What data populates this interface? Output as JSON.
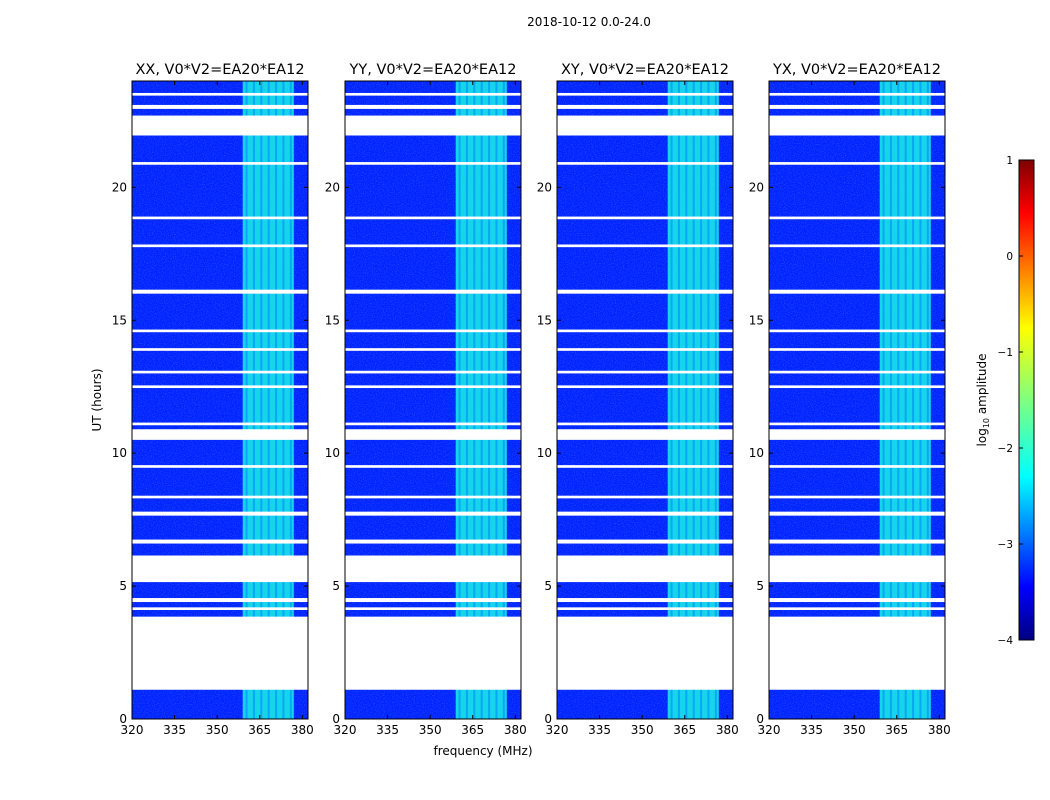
{
  "chart_data": {
    "type": "heatmap",
    "suptitle": "2018-10-12 0.0-24.0",
    "xlabel": "frequency (MHz)",
    "ylabel": "UT (hours)",
    "xlim": [
      320,
      382
    ],
    "ylim": [
      0,
      24
    ],
    "xticks": [
      320,
      335,
      350,
      365,
      380
    ],
    "yticks": [
      0,
      5,
      10,
      15,
      20
    ],
    "panels": [
      {
        "title": "XX, V0*V2=EA20*EA12"
      },
      {
        "title": "YY, V0*V2=EA20*EA12"
      },
      {
        "title": "XY, V0*V2=EA20*EA12"
      },
      {
        "title": "YX, V0*V2=EA20*EA12"
      }
    ],
    "background_log_amplitude": -3.2,
    "rfi_band_mhz": [
      359,
      377
    ],
    "rfi_log_amplitude": -2.0,
    "flagged_ut_ranges": [
      [
        1.1,
        3.85
      ],
      [
        4.1,
        4.2
      ],
      [
        4.4,
        4.55
      ],
      [
        5.15,
        6.15
      ],
      [
        6.6,
        6.75
      ],
      [
        7.65,
        7.8
      ],
      [
        8.3,
        8.4
      ],
      [
        9.45,
        9.55
      ],
      [
        10.5,
        10.9
      ],
      [
        11.05,
        11.15
      ],
      [
        12.45,
        12.55
      ],
      [
        13.0,
        13.1
      ],
      [
        13.85,
        13.95
      ],
      [
        14.55,
        14.65
      ],
      [
        16.0,
        16.15
      ],
      [
        17.75,
        17.85
      ],
      [
        18.8,
        18.9
      ],
      [
        20.85,
        20.95
      ],
      [
        21.95,
        22.7
      ],
      [
        22.95,
        23.1
      ],
      [
        23.45,
        23.55
      ]
    ],
    "colorbar": {
      "label": "log10 amplitude",
      "range": [
        -4,
        1
      ],
      "ticks": [
        1,
        0,
        -1,
        -2,
        -3,
        -4
      ],
      "colormap": "jet"
    }
  }
}
